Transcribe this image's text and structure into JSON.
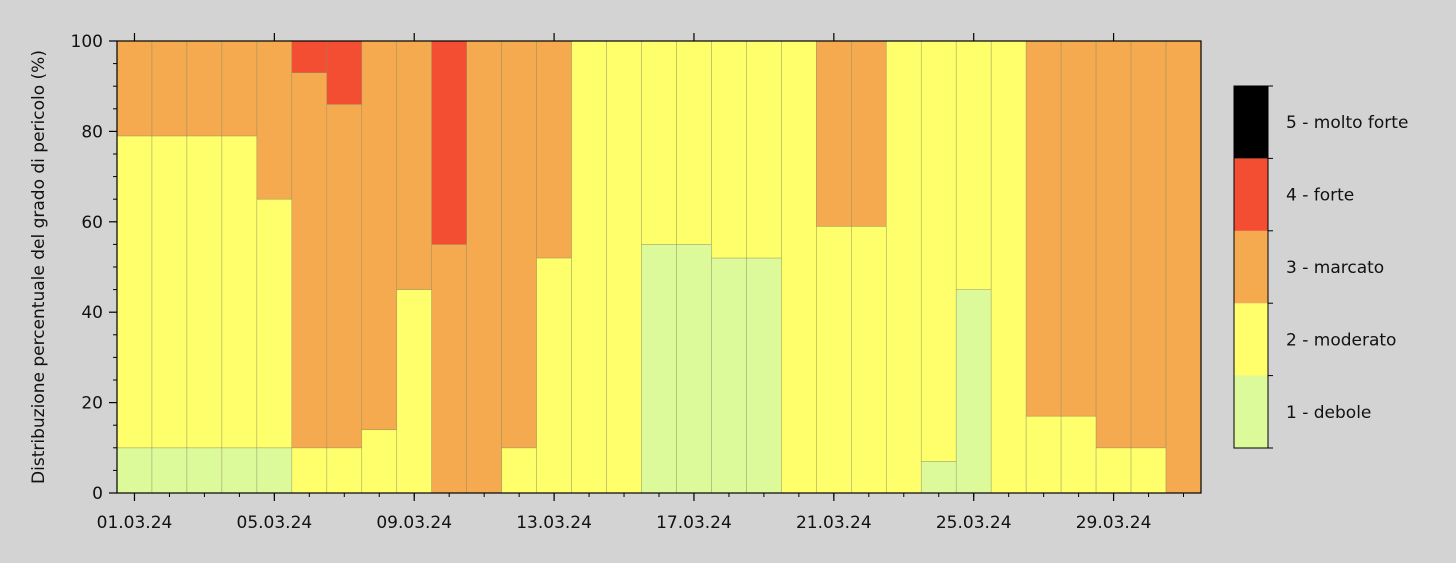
{
  "chart_data": {
    "type": "bar",
    "stacked": true,
    "ylabel": "Distribuzione percentuale del grado di pericolo (%)",
    "xlabel": "",
    "ylim": [
      0,
      100
    ],
    "yticks": [
      0,
      20,
      40,
      60,
      80,
      100
    ],
    "categories": [
      "01.03.24",
      "02.03.24",
      "03.03.24",
      "04.03.24",
      "05.03.24",
      "06.03.24",
      "07.03.24",
      "08.03.24",
      "09.03.24",
      "10.03.24",
      "11.03.24",
      "12.03.24",
      "13.03.24",
      "14.03.24",
      "15.03.24",
      "16.03.24",
      "17.03.24",
      "18.03.24",
      "19.03.24",
      "20.03.24",
      "21.03.24",
      "22.03.24",
      "23.03.24",
      "24.03.24",
      "25.03.24",
      "26.03.24",
      "27.03.24",
      "28.03.24",
      "29.03.24",
      "30.03.24",
      "31.03.24"
    ],
    "xtick_labels": [
      "01.03.24",
      "05.03.24",
      "09.03.24",
      "13.03.24",
      "17.03.24",
      "21.03.24",
      "25.03.24",
      "29.03.24"
    ],
    "series": [
      {
        "name": "1 - debole",
        "color": "#ddfa9b",
        "values": [
          10,
          10,
          10,
          10,
          10,
          0,
          0,
          0,
          0,
          0,
          0,
          0,
          0,
          0,
          0,
          55,
          55,
          52,
          52,
          0,
          0,
          0,
          0,
          7,
          45,
          0,
          0,
          0,
          0,
          0,
          0
        ]
      },
      {
        "name": "2 - moderato",
        "color": "#ffff6c",
        "values": [
          69,
          69,
          69,
          69,
          55,
          10,
          10,
          14,
          45,
          0,
          0,
          10,
          52,
          100,
          100,
          45,
          45,
          48,
          48,
          100,
          59,
          59,
          100,
          93,
          55,
          100,
          17,
          17,
          10,
          10,
          0
        ]
      },
      {
        "name": "3 - marcato",
        "color": "#f6aa50",
        "values": [
          21,
          21,
          21,
          21,
          35,
          83,
          76,
          86,
          55,
          55,
          100,
          90,
          48,
          0,
          0,
          0,
          0,
          0,
          0,
          0,
          41,
          41,
          0,
          0,
          0,
          0,
          83,
          83,
          90,
          90,
          100
        ]
      },
      {
        "name": "4 - forte",
        "color": "#f44e32",
        "values": [
          0,
          0,
          0,
          0,
          0,
          7,
          14,
          0,
          0,
          45,
          0,
          0,
          0,
          0,
          0,
          0,
          0,
          0,
          0,
          0,
          0,
          0,
          0,
          0,
          0,
          0,
          0,
          0,
          0,
          0,
          0
        ]
      },
      {
        "name": "5 - molto forte",
        "color": "#000000",
        "values": [
          0,
          0,
          0,
          0,
          0,
          0,
          0,
          0,
          0,
          0,
          0,
          0,
          0,
          0,
          0,
          0,
          0,
          0,
          0,
          0,
          0,
          0,
          0,
          0,
          0,
          0,
          0,
          0,
          0,
          0,
          0
        ]
      }
    ],
    "legend_placement": "right",
    "grid": false
  }
}
